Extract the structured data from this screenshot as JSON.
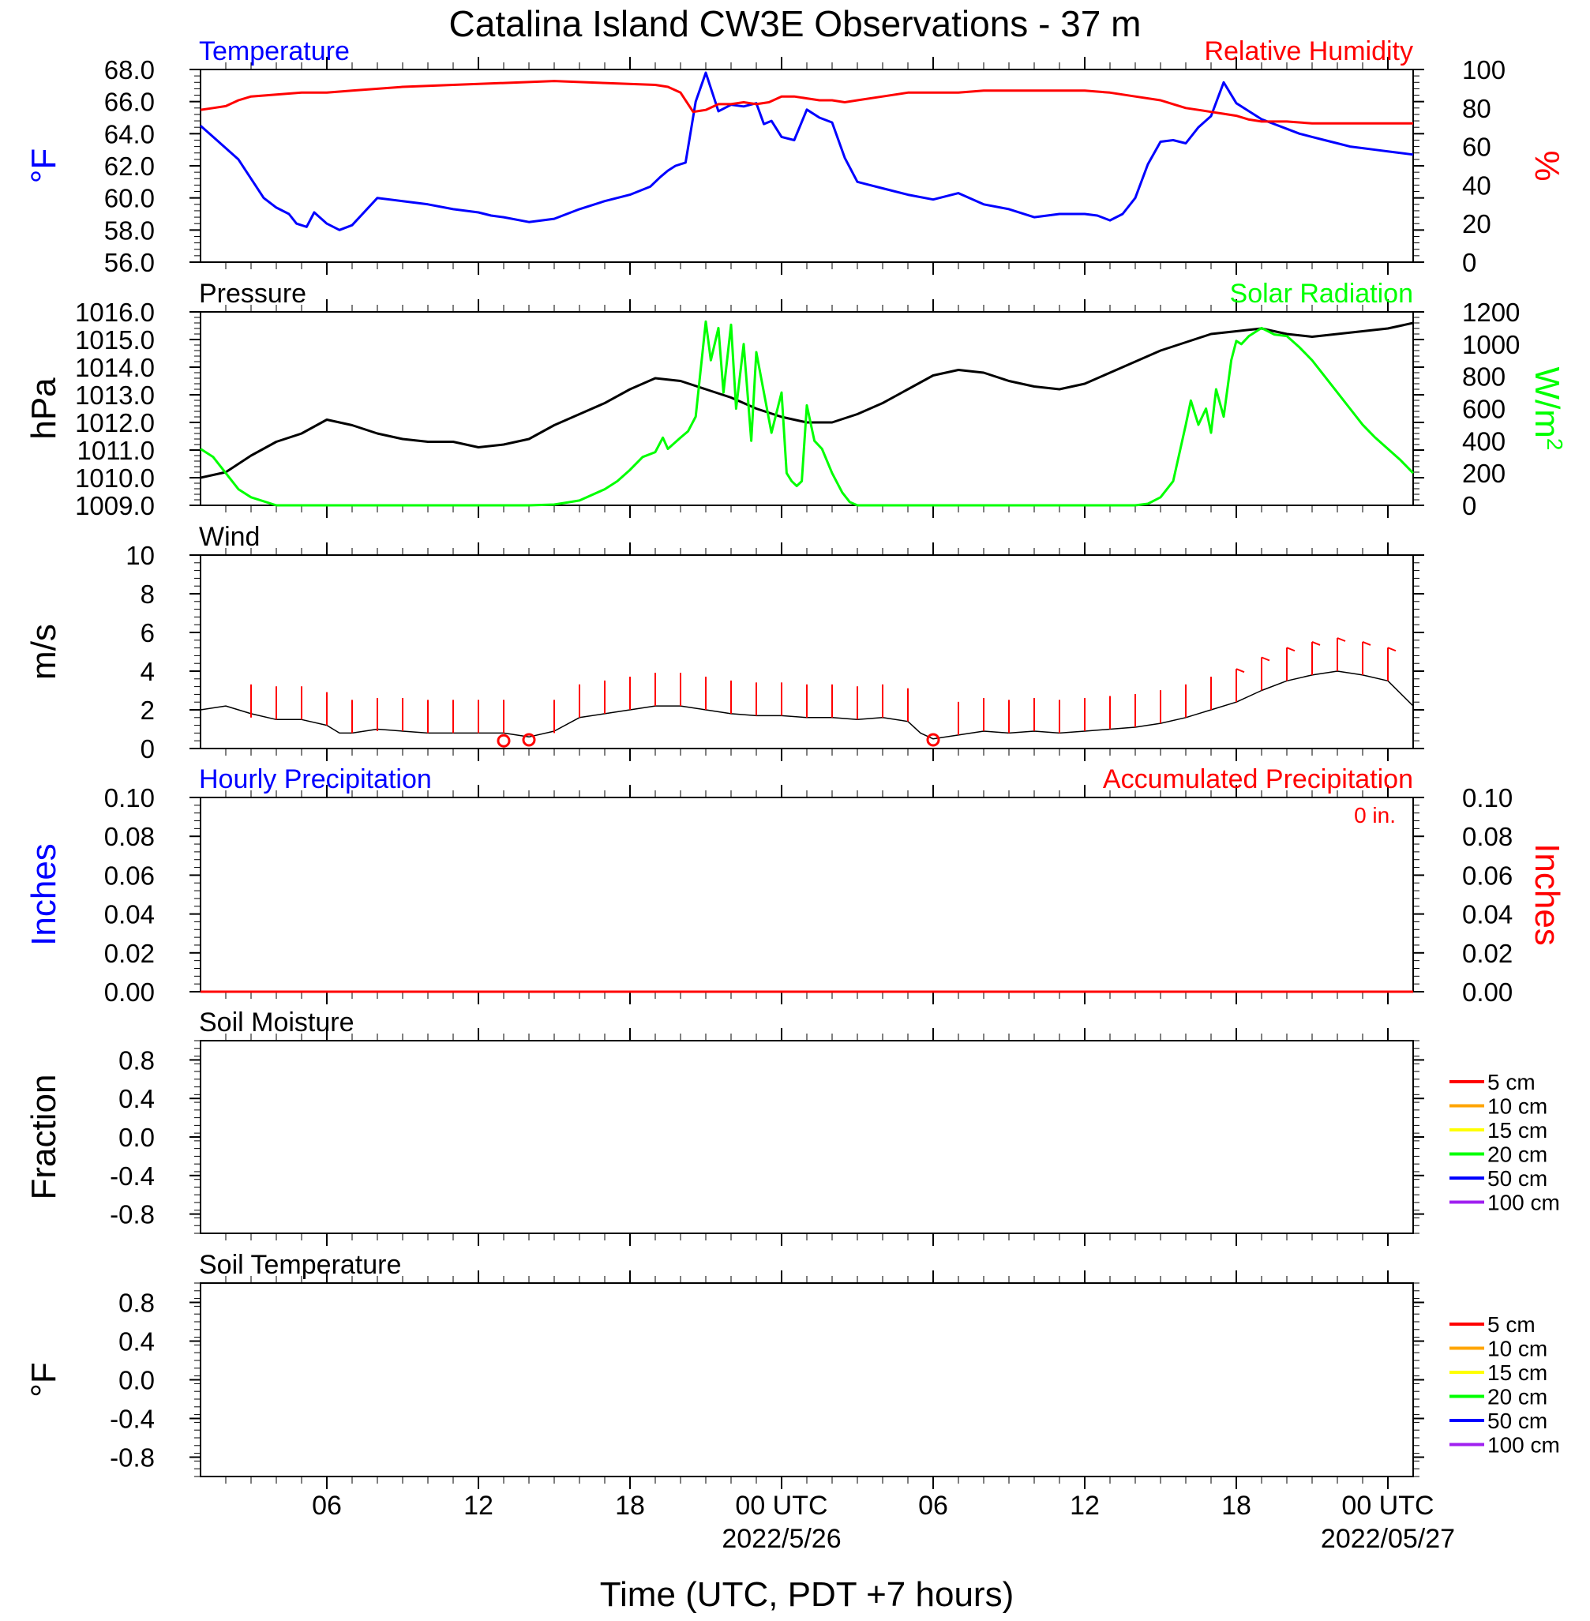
{
  "title": "Catalina Island CW3E Observations - 37 m",
  "xlabel": "Time (UTC, PDT +7 hours)",
  "x_axis": {
    "range_hours": [
      0,
      48
    ],
    "tick_labels": [
      {
        "hour": 5,
        "label": "06"
      },
      {
        "hour": 11,
        "label": "12"
      },
      {
        "hour": 17,
        "label": "18"
      },
      {
        "hour": 23,
        "label": "00 UTC",
        "date": "2022/5/26"
      },
      {
        "hour": 29,
        "label": "06"
      },
      {
        "hour": 35,
        "label": "12"
      },
      {
        "hour": 41,
        "label": "18"
      },
      {
        "hour": 47,
        "label": "00 UTC",
        "date": "2022/05/27"
      }
    ]
  },
  "colors": {
    "temperature": "#0000ff",
    "humidity": "#ff0000",
    "pressure": "#000000",
    "solar": "#00ff00",
    "wind": "#000000",
    "wind_barb": "#ff0000",
    "hourly_precip": "#0000ff",
    "accum_precip": "#ff0000"
  },
  "chart_data": [
    {
      "type": "line",
      "panel": "temperature-humidity",
      "title_left": "Temperature",
      "title_right": "Relative Humidity",
      "ylabel": "°F",
      "ylabel_right": "%",
      "ylim": [
        56,
        68
      ],
      "ylim_right": [
        0,
        100
      ],
      "yticks": [
        "56.0",
        "58.0",
        "60.0",
        "62.0",
        "64.0",
        "66.0",
        "68.0"
      ],
      "yticks_right": [
        "0",
        "20",
        "40",
        "60",
        "80",
        "100"
      ],
      "series": [
        {
          "name": "Temperature",
          "axis": "left",
          "color": "#0000ff",
          "x": [
            0,
            0.5,
            1,
            1.5,
            2,
            2.5,
            3,
            3.5,
            3.8,
            4.2,
            4.5,
            5,
            5.5,
            6,
            7,
            8,
            9,
            10,
            11,
            11.5,
            12,
            13,
            14,
            15,
            16,
            17,
            17.8,
            18.2,
            18.5,
            18.8,
            19.2,
            19.6,
            20,
            20.5,
            21,
            21.5,
            22,
            22.3,
            22.6,
            23,
            23.5,
            24,
            24.5,
            25,
            25.5,
            26,
            26.5,
            27,
            28,
            29,
            30,
            31,
            32,
            33,
            34,
            35,
            35.5,
            36,
            36.5,
            37,
            37.5,
            38,
            38.5,
            39,
            39.5,
            40,
            40.5,
            41,
            41.5,
            42,
            42.5,
            43,
            43.5,
            44,
            44.5,
            45,
            45.5,
            46,
            46.5,
            47,
            47.5,
            48
          ],
          "y": [
            64.5,
            63.8,
            63.1,
            62.4,
            61.2,
            60.0,
            59.4,
            59.0,
            58.4,
            58.2,
            59.1,
            58.4,
            58.0,
            58.3,
            60.0,
            59.8,
            59.6,
            59.3,
            59.1,
            58.9,
            58.8,
            58.5,
            58.7,
            59.3,
            59.8,
            60.2,
            60.7,
            61.3,
            61.7,
            62.0,
            62.2,
            66.0,
            67.8,
            65.4,
            65.8,
            65.7,
            65.9,
            64.6,
            64.8,
            63.8,
            63.6,
            65.5,
            65.0,
            64.7,
            62.5,
            61.0,
            60.8,
            60.6,
            60.2,
            59.9,
            60.3,
            59.6,
            59.3,
            58.8,
            59.0,
            59.0,
            58.9,
            58.6,
            59.0,
            60.0,
            62.1,
            63.5,
            63.6,
            63.4,
            64.4,
            65.1,
            67.2,
            65.9,
            65.4,
            64.9,
            64.6,
            64.3,
            64.0,
            63.8,
            63.6,
            63.4,
            63.2,
            63.1,
            63.0,
            62.9,
            62.8,
            62.7
          ]
        },
        {
          "name": "Relative Humidity",
          "axis": "right",
          "color": "#ff0000",
          "x": [
            0,
            0.5,
            1,
            1.5,
            2,
            3,
            4,
            5,
            6,
            8,
            10,
            12,
            14,
            16,
            18,
            18.5,
            19,
            19.5,
            20,
            20.5,
            21,
            21.5,
            22,
            22.5,
            23,
            23.5,
            24,
            24.5,
            25,
            25.5,
            26,
            27,
            28,
            29,
            30,
            31,
            32,
            33,
            34,
            35,
            36,
            37,
            38,
            38.5,
            39,
            39.5,
            40,
            40.5,
            41,
            41.5,
            42,
            43,
            44,
            45,
            46,
            47,
            48
          ],
          "y": [
            79,
            80,
            81,
            84,
            86,
            87,
            88,
            88,
            89,
            91,
            92,
            93,
            94,
            93,
            92,
            91,
            88,
            78,
            79,
            82,
            82,
            83,
            82,
            83,
            86,
            86,
            85,
            84,
            84,
            83,
            84,
            86,
            88,
            88,
            88,
            89,
            89,
            89,
            89,
            89,
            88,
            86,
            84,
            82,
            80,
            79,
            78,
            77,
            76,
            74,
            73,
            73,
            72,
            72,
            72,
            72,
            72
          ]
        }
      ]
    },
    {
      "type": "line",
      "panel": "pressure-solar",
      "title_left": "Pressure",
      "title_right": "Solar Radiation",
      "ylabel": "hPa",
      "ylabel_right": "W/m",
      "ylabel_right_sup": "2",
      "ylim": [
        1009,
        1016
      ],
      "ylim_right": [
        0,
        1200
      ],
      "yticks": [
        "1009.0",
        "1010.0",
        "1011.0",
        "1012.0",
        "1013.0",
        "1014.0",
        "1015.0",
        "1016.0"
      ],
      "yticks_right": [
        "0",
        "200",
        "400",
        "600",
        "800",
        "1000",
        "1200"
      ],
      "series": [
        {
          "name": "Pressure",
          "axis": "left",
          "color": "#000000",
          "x": [
            0,
            1,
            2,
            3,
            4,
            5,
            6,
            7,
            8,
            9,
            10,
            11,
            12,
            13,
            14,
            15,
            16,
            17,
            18,
            19,
            20,
            21,
            22,
            23,
            24,
            25,
            26,
            27,
            28,
            29,
            30,
            31,
            32,
            33,
            34,
            35,
            36,
            37,
            38,
            39,
            40,
            41,
            42,
            43,
            44,
            45,
            46,
            47,
            48
          ],
          "y": [
            1010.0,
            1010.2,
            1010.8,
            1011.3,
            1011.6,
            1012.1,
            1011.9,
            1011.6,
            1011.4,
            1011.3,
            1011.3,
            1011.1,
            1011.2,
            1011.4,
            1011.9,
            1012.3,
            1012.7,
            1013.2,
            1013.6,
            1013.5,
            1013.2,
            1012.9,
            1012.5,
            1012.2,
            1012.0,
            1012.0,
            1012.3,
            1012.7,
            1013.2,
            1013.7,
            1013.9,
            1013.8,
            1013.5,
            1013.3,
            1013.2,
            1013.4,
            1013.8,
            1014.2,
            1014.6,
            1014.9,
            1015.2,
            1015.3,
            1015.4,
            1015.2,
            1015.1,
            1015.2,
            1015.3,
            1015.4,
            1015.6
          ]
        },
        {
          "name": "Solar Radiation",
          "axis": "right",
          "color": "#00ff00",
          "x": [
            0,
            0.5,
            1,
            1.5,
            2,
            3,
            4,
            5,
            6,
            8,
            10,
            11,
            12,
            13,
            14,
            15,
            16,
            16.5,
            17,
            17.5,
            18,
            18.3,
            18.5,
            19,
            19.3,
            19.6,
            20,
            20.2,
            20.5,
            20.7,
            21,
            21.2,
            21.5,
            21.8,
            22,
            22.3,
            22.6,
            23,
            23.2,
            23.4,
            23.6,
            23.8,
            24,
            24.3,
            24.6,
            25,
            25.4,
            25.7,
            26,
            27,
            28,
            30,
            32,
            34,
            35,
            36,
            37,
            37.5,
            38,
            38.5,
            39,
            39.2,
            39.5,
            39.8,
            40,
            40.2,
            40.5,
            40.8,
            41,
            41.2,
            41.5,
            41.8,
            42,
            42.5,
            43,
            43.5,
            44,
            44.5,
            45,
            45.5,
            46,
            46.5,
            47,
            47.5,
            48
          ],
          "y": [
            350,
            300,
            200,
            100,
            50,
            0,
            0,
            0,
            0,
            0,
            0,
            0,
            0,
            0,
            5,
            30,
            100,
            150,
            220,
            300,
            330,
            420,
            350,
            420,
            460,
            550,
            1140,
            900,
            1100,
            700,
            1120,
            600,
            1000,
            400,
            950,
            700,
            450,
            700,
            200,
            150,
            120,
            150,
            620,
            400,
            350,
            200,
            80,
            20,
            0,
            0,
            0,
            0,
            0,
            0,
            0,
            0,
            0,
            10,
            50,
            150,
            500,
            650,
            500,
            600,
            450,
            720,
            550,
            900,
            1020,
            1000,
            1050,
            1080,
            1100,
            1060,
            1050,
            980,
            900,
            800,
            700,
            600,
            500,
            420,
            350,
            280,
            200
          ]
        }
      ]
    },
    {
      "type": "line",
      "panel": "wind",
      "title_left": "Wind",
      "ylabel": "m/s",
      "ylim": [
        0,
        10
      ],
      "yticks": [
        "0",
        "2",
        "4",
        "6",
        "8",
        "10"
      ],
      "series": [
        {
          "name": "Wind",
          "axis": "left",
          "color": "#000000",
          "x": [
            0,
            1,
            2,
            3,
            4,
            5,
            5.5,
            6,
            7,
            8,
            9,
            10,
            11,
            12,
            13,
            14,
            15,
            16,
            17,
            18,
            19,
            20,
            21,
            22,
            23,
            24,
            25,
            26,
            27,
            28,
            28.5,
            29,
            30,
            31,
            32,
            33,
            34,
            35,
            36,
            37,
            38,
            39,
            40,
            41,
            42,
            43,
            44,
            45,
            46,
            47,
            48
          ],
          "y": [
            2.0,
            2.2,
            1.8,
            1.5,
            1.5,
            1.2,
            0.8,
            0.8,
            1.0,
            0.9,
            0.8,
            0.8,
            0.8,
            0.8,
            0.6,
            0.9,
            1.6,
            1.8,
            2.0,
            2.2,
            2.2,
            2.0,
            1.8,
            1.7,
            1.7,
            1.6,
            1.6,
            1.5,
            1.6,
            1.4,
            0.8,
            0.5,
            0.7,
            0.9,
            0.8,
            0.9,
            0.8,
            0.9,
            1.0,
            1.1,
            1.3,
            1.6,
            2.0,
            2.4,
            3.0,
            3.5,
            3.8,
            4.0,
            3.8,
            3.5,
            2.2
          ]
        },
        {
          "name": "Wind barbs",
          "axis": "left",
          "color": "#ff0000",
          "x": [
            2,
            3,
            4,
            5,
            6,
            7,
            8,
            9,
            10,
            11,
            12,
            14,
            15,
            16,
            17,
            18,
            19,
            20,
            21,
            22,
            23,
            24,
            25,
            26,
            27,
            28,
            30,
            31,
            32,
            33,
            34,
            35,
            36,
            37,
            38,
            39,
            40,
            41,
            42,
            43,
            44,
            45,
            46,
            47
          ],
          "y": [
            1.6,
            1.5,
            1.5,
            1.2,
            0.8,
            0.9,
            0.9,
            0.8,
            0.8,
            0.8,
            0.8,
            0.8,
            1.6,
            1.8,
            2.0,
            2.2,
            2.2,
            2.0,
            1.8,
            1.7,
            1.7,
            1.6,
            1.6,
            1.5,
            1.6,
            1.4,
            0.7,
            0.9,
            0.8,
            0.9,
            0.8,
            0.9,
            1.0,
            1.1,
            1.3,
            1.6,
            2.0,
            2.4,
            3.0,
            3.5,
            3.8,
            4.0,
            3.8,
            3.5
          ],
          "speed_class": [
            0,
            0,
            0,
            0,
            0,
            0,
            0,
            0,
            0,
            0,
            0,
            0,
            0,
            0,
            0,
            0,
            0,
            0,
            0,
            0,
            0,
            0,
            0,
            0,
            0,
            0,
            0,
            0,
            0,
            0,
            0,
            0,
            0,
            0,
            0,
            0,
            0,
            1,
            1,
            1,
            1,
            1,
            1,
            1
          ]
        },
        {
          "name": "Calm",
          "axis": "left",
          "color": "#ff0000",
          "x": [
            12,
            13,
            29
          ],
          "y": [
            0.4,
            0.45,
            0.45
          ]
        }
      ]
    },
    {
      "type": "line",
      "panel": "precipitation",
      "title_left": "Hourly Precipitation",
      "title_right": "Accumulated Precipitation",
      "total_label": "0 in.",
      "ylabel": "Inches",
      "ylabel_right": "Inches",
      "ylim": [
        0,
        0.1
      ],
      "ylim_right": [
        0,
        0.1
      ],
      "yticks": [
        "0.00",
        "0.02",
        "0.04",
        "0.06",
        "0.08",
        "0.10"
      ],
      "yticks_right": [
        "0.00",
        "0.02",
        "0.04",
        "0.06",
        "0.08",
        "0.10"
      ],
      "series": [
        {
          "name": "Hourly Precipitation",
          "axis": "left",
          "color": "#0000ff",
          "x": [
            0,
            48
          ],
          "y": [
            0,
            0
          ]
        },
        {
          "name": "Accumulated Precipitation",
          "axis": "right",
          "color": "#ff0000",
          "x": [
            0,
            48
          ],
          "y": [
            0,
            0
          ]
        }
      ]
    },
    {
      "type": "line",
      "panel": "soil-moisture",
      "title_left": "Soil Moisture",
      "ylabel": "Fraction",
      "ylim": [
        -1,
        1
      ],
      "yticks": [
        "-0.8",
        "-0.4",
        "0.0",
        "0.4",
        "0.8"
      ],
      "legend": [
        {
          "label": "5 cm",
          "color": "#ff0000"
        },
        {
          "label": "10 cm",
          "color": "#ffa500"
        },
        {
          "label": "15 cm",
          "color": "#ffff00"
        },
        {
          "label": "20 cm",
          "color": "#00ff00"
        },
        {
          "label": "50 cm",
          "color": "#0000ff"
        },
        {
          "label": "100 cm",
          "color": "#a020f0"
        }
      ],
      "series": []
    },
    {
      "type": "line",
      "panel": "soil-temperature",
      "title_left": "Soil Temperature",
      "ylabel": "°F",
      "ylim": [
        -1,
        1
      ],
      "yticks": [
        "-0.8",
        "-0.4",
        "0.0",
        "0.4",
        "0.8"
      ],
      "legend": [
        {
          "label": "5 cm",
          "color": "#ff0000"
        },
        {
          "label": "10 cm",
          "color": "#ffa500"
        },
        {
          "label": "15 cm",
          "color": "#ffff00"
        },
        {
          "label": "20 cm",
          "color": "#00ff00"
        },
        {
          "label": "50 cm",
          "color": "#0000ff"
        },
        {
          "label": "100 cm",
          "color": "#a020f0"
        }
      ],
      "series": []
    }
  ]
}
